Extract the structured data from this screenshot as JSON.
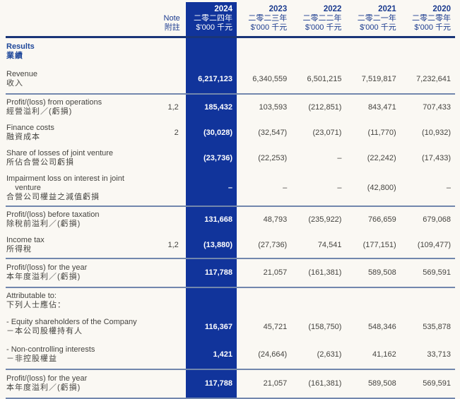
{
  "palette": {
    "background": "#FAF8F3",
    "highlight_column": "#11349B",
    "thick_rule": "#1A3577",
    "thin_rule": "#7287AD",
    "header_text": "#1B3B8F",
    "body_text": "#454440"
  },
  "header": {
    "note": {
      "en": "Note",
      "zh": "附註"
    },
    "columns": [
      {
        "year": "2024",
        "zh": "二零二四年",
        "unit": "$'000 千元"
      },
      {
        "year": "2023",
        "zh": "二零二三年",
        "unit": "$'000 千元"
      },
      {
        "year": "2022",
        "zh": "二零二二年",
        "unit": "$'000 千元"
      },
      {
        "year": "2021",
        "zh": "二零二一年",
        "unit": "$'000 千元"
      },
      {
        "year": "2020",
        "zh": "二零二零年",
        "unit": "$'000 千元"
      }
    ]
  },
  "heading": {
    "en": "Results",
    "zh": "業績"
  },
  "rows": [
    {
      "en": "Revenue",
      "zh": "收入",
      "note": "",
      "v": [
        "6,217,123",
        "6,340,559",
        "6,501,215",
        "7,519,817",
        "7,232,641"
      ]
    },
    {
      "en": "Profit/(loss) from operations",
      "zh": "經營溢利／(虧損)",
      "note": "1,2",
      "v": [
        "185,432",
        "103,593",
        "(212,851)",
        "843,471",
        "707,433"
      ]
    },
    {
      "en": "Finance costs",
      "zh": "融資成本",
      "note": "2",
      "v": [
        "(30,028)",
        "(32,547)",
        "(23,071)",
        "(11,770)",
        "(10,932)"
      ]
    },
    {
      "en": "Share of losses of joint venture",
      "zh": "所佔合營公司虧損",
      "note": "",
      "v": [
        "(23,736)",
        "(22,253)",
        "–",
        "(22,242)",
        "(17,433)"
      ]
    },
    {
      "en": "Impairment loss on interest in joint\n    venture",
      "zh": "合營公司權益之減值虧損",
      "note": "",
      "v": [
        "–",
        "–",
        "–",
        "(42,800)",
        "–"
      ]
    },
    {
      "en": "Profit/(loss) before taxation",
      "zh": "除稅前溢利／(虧損)",
      "note": "",
      "v": [
        "131,668",
        "48,793",
        "(235,922)",
        "766,659",
        "679,068"
      ]
    },
    {
      "en": "Income tax",
      "zh": "所得稅",
      "note": "1,2",
      "v": [
        "(13,880)",
        "(27,736)",
        "74,541",
        "(177,151)",
        "(109,477)"
      ]
    },
    {
      "en": "Profit/(loss) for the year",
      "zh": "本年度溢利／(虧損)",
      "note": "",
      "v": [
        "117,788",
        "21,057",
        "(161,381)",
        "589,508",
        "569,591"
      ]
    },
    {
      "en": "Attributable to:",
      "zh": "下列人士應佔：",
      "note": "",
      "v": [
        "",
        "",
        "",
        "",
        ""
      ]
    },
    {
      "en": "- Equity shareholders of the Company",
      "zh": "－本公司股權持有人",
      "note": "",
      "v": [
        "116,367",
        "45,721",
        "(158,750)",
        "548,346",
        "535,878"
      ]
    },
    {
      "en": "- Non-controlling interests",
      "zh": "－非控股權益",
      "note": "",
      "v": [
        "1,421",
        "(24,664)",
        "(2,631)",
        "41,162",
        "33,713"
      ]
    },
    {
      "en": "Profit/(loss) for the year",
      "zh": "本年度溢利／(虧損)",
      "note": "",
      "v": [
        "117,788",
        "21,057",
        "(161,381)",
        "589,508",
        "569,591"
      ]
    }
  ]
}
